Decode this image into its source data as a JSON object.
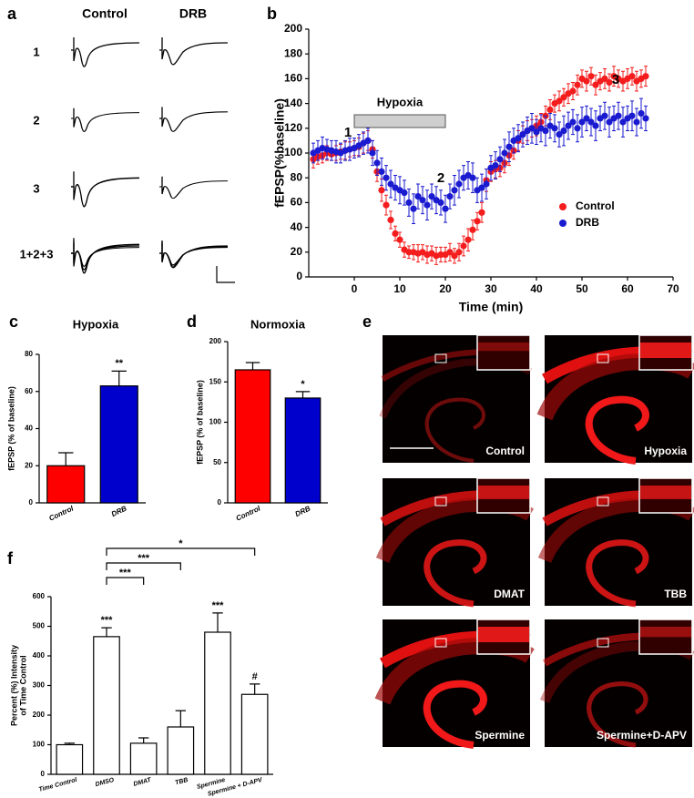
{
  "panels": {
    "a": {
      "label": "a",
      "columns": [
        "Control",
        "DRB"
      ],
      "rows": [
        "1",
        "2",
        "3",
        "1+2+3"
      ]
    },
    "e": {
      "label": "e",
      "images": [
        "Control",
        "Hypoxia",
        "DMAT",
        "TBB",
        "Spermine",
        "Spermine+D-APV"
      ]
    }
  },
  "chart_data": [
    {
      "panel_label": "b",
      "type": "scatter",
      "xlabel": "Time (min)",
      "ylabel": "fEPSP(%baseline)",
      "x": [
        -9,
        -8,
        -7,
        -6,
        -5,
        -4,
        -3,
        -2,
        -1,
        0,
        1,
        2,
        3,
        4,
        5,
        6,
        7,
        8,
        9,
        10,
        11,
        12,
        13,
        14,
        15,
        16,
        17,
        18,
        19,
        20,
        21,
        22,
        23,
        24,
        25,
        26,
        27,
        28,
        29,
        30,
        31,
        32,
        33,
        34,
        35,
        36,
        37,
        38,
        39,
        40,
        41,
        42,
        43,
        44,
        45,
        46,
        47,
        48,
        49,
        50,
        51,
        52,
        53,
        54,
        55,
        56,
        57,
        58,
        59,
        60,
        61,
        62,
        63,
        64
      ],
      "xlim": [
        -10,
        70
      ],
      "xticks": [
        0,
        10,
        20,
        30,
        40,
        50,
        60,
        70
      ],
      "ylim": [
        0,
        200
      ],
      "yticks": [
        0,
        20,
        40,
        60,
        80,
        100,
        120,
        140,
        160,
        180,
        200
      ],
      "series": [
        {
          "name": "Control",
          "color": "#f41c1c",
          "values": [
            95,
            97,
            98,
            100,
            99,
            100,
            101,
            102,
            103,
            104,
            105,
            108,
            110,
            103,
            85,
            70,
            58,
            46,
            35,
            30,
            22,
            20,
            20,
            19,
            20,
            18,
            19,
            17,
            18,
            18,
            20,
            17,
            20,
            25,
            30,
            38,
            45,
            52,
            78,
            85,
            87,
            88,
            92,
            98,
            102,
            110,
            115,
            118,
            120,
            122,
            125,
            130,
            135,
            140,
            142,
            145,
            148,
            150,
            155,
            160,
            158,
            162,
            155,
            158,
            160,
            157,
            162,
            160,
            158,
            160,
            162,
            158,
            160,
            162
          ],
          "errors": [
            7,
            6,
            6,
            6,
            5,
            6,
            6,
            7,
            6,
            6,
            7,
            8,
            8,
            7,
            8,
            9,
            8,
            7,
            6,
            6,
            6,
            5,
            6,
            7,
            6,
            7,
            6,
            7,
            6,
            6,
            7,
            6,
            7,
            8,
            9,
            8,
            7,
            8,
            9,
            8,
            7,
            7,
            8,
            8,
            7,
            8,
            7,
            8,
            7,
            8,
            7,
            8,
            8,
            7,
            8,
            7,
            8,
            7,
            8,
            7,
            8,
            7,
            8,
            7,
            8,
            7,
            8,
            7,
            8,
            8,
            7,
            8,
            7,
            8
          ]
        },
        {
          "name": "DRB",
          "color": "#1a1ad0",
          "values": [
            100,
            102,
            104,
            103,
            102,
            101,
            100,
            102,
            103,
            104,
            106,
            108,
            110,
            100,
            92,
            85,
            80,
            75,
            72,
            70,
            68,
            60,
            55,
            65,
            62,
            58,
            65,
            62,
            60,
            55,
            65,
            70,
            75,
            80,
            82,
            80,
            70,
            72,
            75,
            88,
            90,
            95,
            100,
            105,
            110,
            112,
            115,
            118,
            120,
            117,
            120,
            118,
            122,
            120,
            115,
            118,
            122,
            125,
            120,
            125,
            128,
            125,
            122,
            128,
            130,
            125,
            128,
            130,
            125,
            128,
            130,
            125,
            132,
            128
          ],
          "errors": [
            8,
            8,
            9,
            8,
            8,
            9,
            8,
            8,
            9,
            8,
            9,
            9,
            10,
            10,
            10,
            11,
            10,
            11,
            10,
            11,
            10,
            11,
            12,
            10,
            11,
            12,
            10,
            11,
            10,
            11,
            10,
            12,
            11,
            10,
            11,
            12,
            10,
            11,
            12,
            10,
            11,
            10,
            11,
            12,
            10,
            11,
            10,
            11,
            12,
            10,
            11,
            12,
            10,
            11,
            10,
            12,
            11,
            10,
            11,
            12,
            10,
            11,
            12,
            10,
            11,
            12,
            10,
            11,
            12,
            10,
            12,
            11,
            12,
            10
          ]
        }
      ],
      "span": {
        "label": "Hypoxia",
        "start": 0,
        "end": 20
      },
      "annotations": [
        "1",
        "2",
        "3"
      ],
      "legend": "right"
    },
    {
      "panel_label": "c",
      "type": "bar",
      "title": "Hypoxia",
      "ylabel": "fEPSP (% of baseline)",
      "categories": [
        "Control",
        "DRB"
      ],
      "values": [
        20,
        63
      ],
      "errors": [
        7,
        8
      ],
      "colors": [
        "#ff0000",
        "#0000cc"
      ],
      "significance": [
        null,
        "**"
      ],
      "ylim": [
        0,
        80
      ],
      "yticks": [
        0,
        20,
        40,
        60,
        80
      ]
    },
    {
      "panel_label": "d",
      "type": "bar",
      "title": "Normoxia",
      "ylabel": "fEPSP (% of baseline)",
      "categories": [
        "Control",
        "DRB"
      ],
      "values": [
        165,
        130
      ],
      "errors": [
        9,
        8
      ],
      "colors": [
        "#ff0000",
        "#0000cc"
      ],
      "significance": [
        null,
        "*"
      ],
      "ylim": [
        0,
        200
      ],
      "yticks": [
        0,
        50,
        100,
        150,
        200
      ]
    },
    {
      "panel_label": "f",
      "type": "bar",
      "ylabel": [
        "Percent (%) Intensity",
        "of Time Control"
      ],
      "categories": [
        "Time Control",
        "DMSO",
        "DMAT",
        "TBB",
        "Spermine",
        "Spermine + D-APV"
      ],
      "values": [
        100,
        465,
        105,
        160,
        480,
        270
      ],
      "errors": [
        5,
        30,
        18,
        55,
        65,
        35
      ],
      "color": "#ffffff",
      "significance": [
        null,
        "***",
        null,
        null,
        "***",
        "#"
      ],
      "comparisons": [
        {
          "from": 1,
          "to": 2,
          "label": "***"
        },
        {
          "from": 1,
          "to": 3,
          "label": "***"
        },
        {
          "from": 1,
          "to": 5,
          "label": "*"
        }
      ],
      "ylim": [
        0,
        600
      ],
      "yticks": [
        0,
        100,
        200,
        300,
        400,
        500,
        600
      ]
    }
  ]
}
